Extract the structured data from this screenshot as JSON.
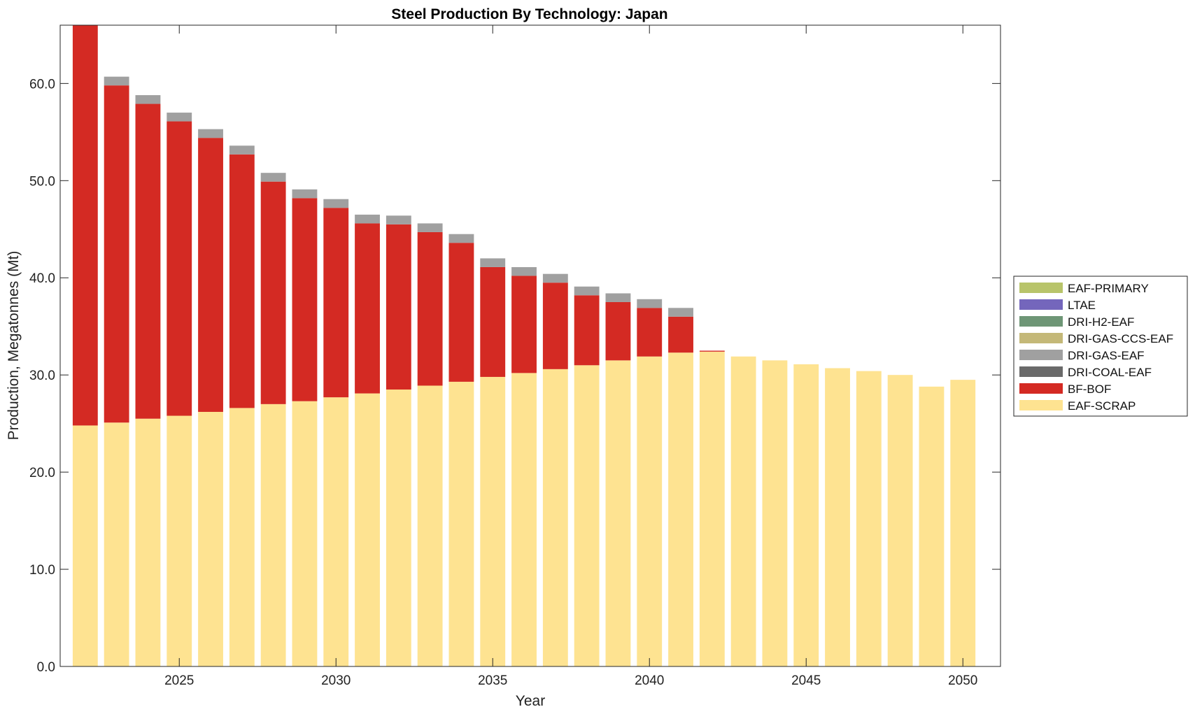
{
  "chart_data": {
    "type": "bar",
    "stacked": true,
    "title": "Steel Production By Technology: Japan",
    "xlabel": "Year",
    "ylabel": "Production, Megatonnes (Mt)",
    "xlim": [
      2021.2,
      2051.2
    ],
    "ylim": [
      0,
      66
    ],
    "xticks": [
      2025,
      2030,
      2035,
      2040,
      2045,
      2050
    ],
    "xtick_labels": [
      "2025",
      "2030",
      "2035",
      "2040",
      "2045",
      "2050"
    ],
    "yticks": [
      0,
      10,
      20,
      30,
      40,
      50,
      60
    ],
    "ytick_labels": [
      "0.0",
      "10.0",
      "20.0",
      "30.0",
      "40.0",
      "50.0",
      "60.0"
    ],
    "legend_position": "outside-right",
    "grid": false,
    "categories": [
      2022,
      2023,
      2024,
      2025,
      2026,
      2027,
      2028,
      2029,
      2030,
      2031,
      2032,
      2033,
      2034,
      2035,
      2036,
      2037,
      2038,
      2039,
      2040,
      2041,
      2042,
      2043,
      2044,
      2045,
      2046,
      2047,
      2048,
      2049,
      2050
    ],
    "series": [
      {
        "name": "EAF-SCRAP",
        "color": "#FEE391",
        "values": [
          24.8,
          25.1,
          25.5,
          25.8,
          26.2,
          26.6,
          27.0,
          27.3,
          27.7,
          28.1,
          28.5,
          28.9,
          29.3,
          29.8,
          30.2,
          30.6,
          31.0,
          31.5,
          31.9,
          32.3,
          32.4,
          31.9,
          31.5,
          31.1,
          30.7,
          30.4,
          30.0,
          28.8,
          29.5
        ]
      },
      {
        "name": "BF-BOF",
        "color": "#D42A23",
        "values": [
          41.2,
          34.7,
          32.4,
          30.3,
          28.2,
          26.1,
          22.9,
          20.9,
          19.5,
          17.5,
          17.0,
          15.8,
          14.3,
          11.3,
          10.0,
          8.9,
          7.2,
          6.0,
          5.0,
          3.7,
          0.1,
          0,
          0,
          0,
          0,
          0,
          0,
          0,
          0
        ]
      },
      {
        "name": "DRI-COAL-EAF",
        "color": "#6A6A6A",
        "values": [
          0,
          0,
          0,
          0,
          0,
          0,
          0,
          0,
          0,
          0,
          0,
          0,
          0,
          0,
          0,
          0,
          0,
          0,
          0,
          0,
          0,
          0,
          0,
          0,
          0,
          0,
          0,
          0,
          0
        ]
      },
      {
        "name": "DRI-GAS-EAF",
        "color": "#A0A0A0",
        "values": [
          0,
          0.9,
          0.9,
          0.9,
          0.9,
          0.9,
          0.9,
          0.9,
          0.9,
          0.9,
          0.9,
          0.9,
          0.9,
          0.9,
          0.9,
          0.9,
          0.9,
          0.9,
          0.9,
          0.9,
          0,
          0,
          0,
          0,
          0,
          0,
          0,
          0,
          0
        ]
      },
      {
        "name": "DRI-GAS-CCS-EAF",
        "color": "#C4B878",
        "values": [
          0,
          0,
          0,
          0,
          0,
          0,
          0,
          0,
          0,
          0,
          0,
          0,
          0,
          0,
          0,
          0,
          0,
          0,
          0,
          0,
          0,
          0,
          0,
          0,
          0,
          0,
          0,
          0,
          0
        ]
      },
      {
        "name": "DRI-H2-EAF",
        "color": "#6E9676",
        "values": [
          0,
          0,
          0,
          0,
          0,
          0,
          0,
          0,
          0,
          0,
          0,
          0,
          0,
          0,
          0,
          0,
          0,
          0,
          0,
          0,
          0,
          0,
          0,
          0,
          0,
          0,
          0,
          0,
          0
        ]
      },
      {
        "name": "LTAE",
        "color": "#7466BC",
        "values": [
          0,
          0,
          0,
          0,
          0,
          0,
          0,
          0,
          0,
          0,
          0,
          0,
          0,
          0,
          0,
          0,
          0,
          0,
          0,
          0,
          0,
          0,
          0,
          0,
          0,
          0,
          0,
          0,
          0
        ]
      },
      {
        "name": "EAF-PRIMARY",
        "color": "#B8C46A",
        "values": [
          0,
          0,
          0,
          0,
          0,
          0,
          0,
          0,
          0,
          0,
          0,
          0,
          0,
          0,
          0,
          0,
          0,
          0,
          0,
          0,
          0,
          0,
          0,
          0,
          0,
          0,
          0,
          0,
          0
        ]
      }
    ],
    "legend_order": [
      "EAF-PRIMARY",
      "LTAE",
      "DRI-H2-EAF",
      "DRI-GAS-CCS-EAF",
      "DRI-GAS-EAF",
      "DRI-COAL-EAF",
      "BF-BOF",
      "EAF-SCRAP"
    ]
  }
}
